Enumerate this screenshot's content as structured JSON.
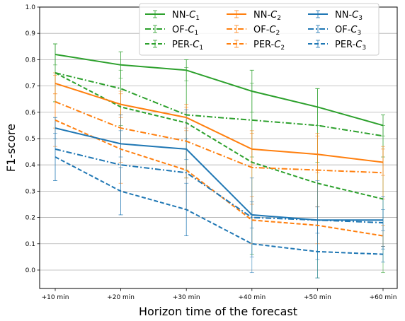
{
  "chart_data": {
    "type": "line",
    "xlabel": "Horizon time of the forecast",
    "ylabel": "F1-score",
    "categories": [
      "+10 min",
      "+20 min",
      "+30 min",
      "+40 min",
      "+50 min",
      "+60 min"
    ],
    "ylim": [
      -0.07,
      1.0
    ],
    "yticks": [
      0.0,
      0.1,
      0.2,
      0.3,
      0.4,
      0.5,
      0.6,
      0.7,
      0.8,
      0.9,
      1.0
    ],
    "grid": "horizontal",
    "legend_position": "top",
    "colors": {
      "C1": "#2ca02c",
      "C2": "#ff7f0e",
      "C3": "#1f77b4"
    },
    "series": [
      {
        "name": "NN-C1",
        "method": "NN",
        "cls": "1",
        "group": "C1",
        "style": "solid",
        "values": [
          0.82,
          0.78,
          0.76,
          0.68,
          0.62,
          0.55
        ],
        "err": [
          0.04,
          0.05,
          0.04,
          0.08,
          0.07,
          0.04
        ]
      },
      {
        "name": "OF-C1",
        "method": "OF",
        "cls": "1",
        "group": "C1",
        "style": "dashdot",
        "values": [
          0.75,
          0.69,
          0.59,
          0.57,
          0.55,
          0.51
        ],
        "err": [
          0.11,
          0.14,
          0.21,
          0.14,
          0.14,
          0.08
        ]
      },
      {
        "name": "PER-C1",
        "method": "PER",
        "cls": "1",
        "group": "C1",
        "style": "dashed",
        "values": [
          0.75,
          0.62,
          0.56,
          0.41,
          0.33,
          0.27
        ],
        "err": [
          0.11,
          0.14,
          0.21,
          0.35,
          0.36,
          0.28
        ]
      },
      {
        "name": "NN-C2",
        "method": "NN",
        "cls": "2",
        "group": "C2",
        "style": "solid",
        "values": [
          0.71,
          0.63,
          0.58,
          0.46,
          0.44,
          0.41
        ],
        "err": [
          0.04,
          0.05,
          0.04,
          0.06,
          0.07,
          0.05
        ]
      },
      {
        "name": "OF-C2",
        "method": "OF",
        "cls": "2",
        "group": "C2",
        "style": "dashdot",
        "values": [
          0.64,
          0.54,
          0.49,
          0.39,
          0.38,
          0.37
        ],
        "err": [
          0.1,
          0.13,
          0.14,
          0.14,
          0.14,
          0.1
        ]
      },
      {
        "name": "PER-C2",
        "method": "PER",
        "cls": "2",
        "group": "C2",
        "style": "dashed",
        "values": [
          0.57,
          0.46,
          0.38,
          0.19,
          0.17,
          0.13
        ],
        "err": [
          0.1,
          0.13,
          0.15,
          0.09,
          0.07,
          0.04
        ]
      },
      {
        "name": "NN-C3",
        "method": "NN",
        "cls": "3",
        "group": "C3",
        "style": "solid",
        "values": [
          0.54,
          0.48,
          0.46,
          0.21,
          0.19,
          0.19
        ],
        "err": [
          0.04,
          0.05,
          0.04,
          0.05,
          0.05,
          0.04
        ]
      },
      {
        "name": "OF-C3",
        "method": "OF",
        "cls": "3",
        "group": "C3",
        "style": "dashdot",
        "values": [
          0.46,
          0.4,
          0.37,
          0.2,
          0.19,
          0.18
        ],
        "err": [
          0.12,
          0.19,
          0.24,
          0.15,
          0.15,
          0.1
        ]
      },
      {
        "name": "PER-C3",
        "method": "PER",
        "cls": "3",
        "group": "C3",
        "style": "dashed",
        "values": [
          0.43,
          0.3,
          0.23,
          0.1,
          0.07,
          0.06
        ],
        "err": [
          0.09,
          0.09,
          0.1,
          0.11,
          0.1,
          0.03
        ]
      }
    ]
  }
}
